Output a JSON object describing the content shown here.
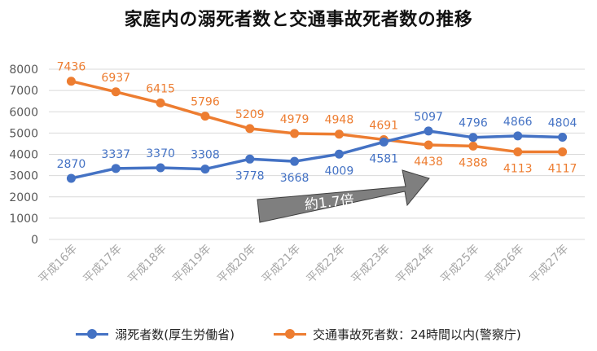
{
  "colors": {
    "blue": "#4472C4",
    "orange": "#ED7D31",
    "grid": "#D9D9D9",
    "axis_text": "#595959",
    "arrow_fill": "#7F7F7F"
  },
  "chart_data": {
    "type": "line",
    "title": "家庭内の溺死者数と交通事故死者数の推移",
    "categories": [
      "平成16年",
      "平成17年",
      "平成18年",
      "平成19年",
      "平成20年",
      "平成21年",
      "平成22年",
      "平成23年",
      "平成24年",
      "平成25年",
      "平成26年",
      "平成27年"
    ],
    "yticks": [
      "8000",
      "7000",
      "6000",
      "5000",
      "4000",
      "3000",
      "2000",
      "1000",
      "0"
    ],
    "ylim": [
      0,
      8000
    ],
    "grid": true,
    "legend_position": "bottom",
    "series": [
      {
        "name": "溺死者数(厚生労働省)",
        "color": "#4472C4",
        "values": [
          2870,
          3337,
          3370,
          3308,
          3778,
          3668,
          4009,
          4581,
          5097,
          4796,
          4866,
          4804
        ],
        "labels": [
          "2870",
          "3337",
          "3370",
          "3308",
          "3778",
          "3668",
          "4009",
          "4581",
          "5097",
          "4796",
          "4866",
          "4804"
        ]
      },
      {
        "name": "交通事故死者数：24時間以内(警察庁)",
        "color": "#ED7D31",
        "values": [
          7436,
          6937,
          6415,
          5796,
          5209,
          4979,
          4948,
          4691,
          4438,
          4388,
          4113,
          4117
        ],
        "labels": [
          "7436",
          "6937",
          "6415",
          "5796",
          "5209",
          "4979",
          "4948",
          "4691",
          "4438",
          "4388",
          "4113",
          "4117"
        ]
      }
    ],
    "annotation": {
      "text": "約1.7倍"
    }
  }
}
